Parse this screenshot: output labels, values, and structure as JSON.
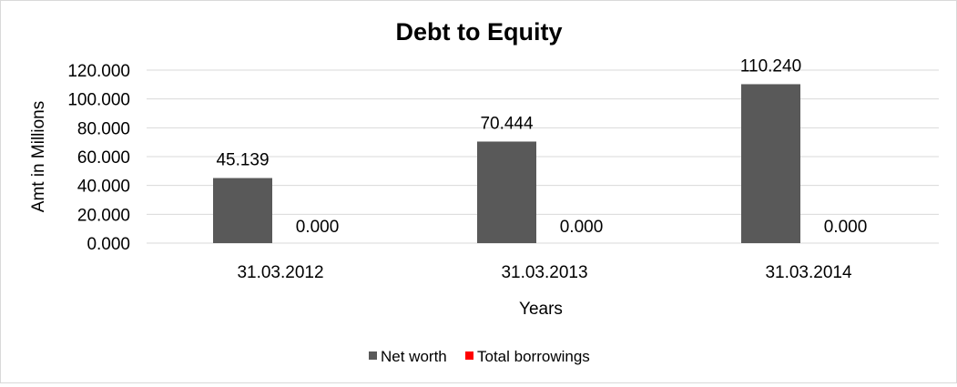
{
  "chart_data": {
    "type": "bar",
    "title": "Debt to Equity",
    "xlabel": "Years",
    "ylabel": "Amt in Millions",
    "categories": [
      "31.03.2012",
      "31.03.2013",
      "31.03.2014"
    ],
    "series": [
      {
        "name": "Net worth",
        "values": [
          45.139,
          70.444,
          110.24
        ],
        "labels": [
          "45.139",
          "70.444",
          "110.240"
        ],
        "color": "#595959"
      },
      {
        "name": "Total borrowings",
        "values": [
          0,
          0,
          0
        ],
        "labels": [
          "0.000",
          "0.000",
          "0.000"
        ],
        "color": "#ff0000"
      }
    ],
    "ylim": [
      0,
      120
    ],
    "yticks": [
      "0.000",
      "20.000",
      "40.000",
      "60.000",
      "80.000",
      "100.000",
      "120.000"
    ],
    "grid": true,
    "legend": "bottom"
  }
}
